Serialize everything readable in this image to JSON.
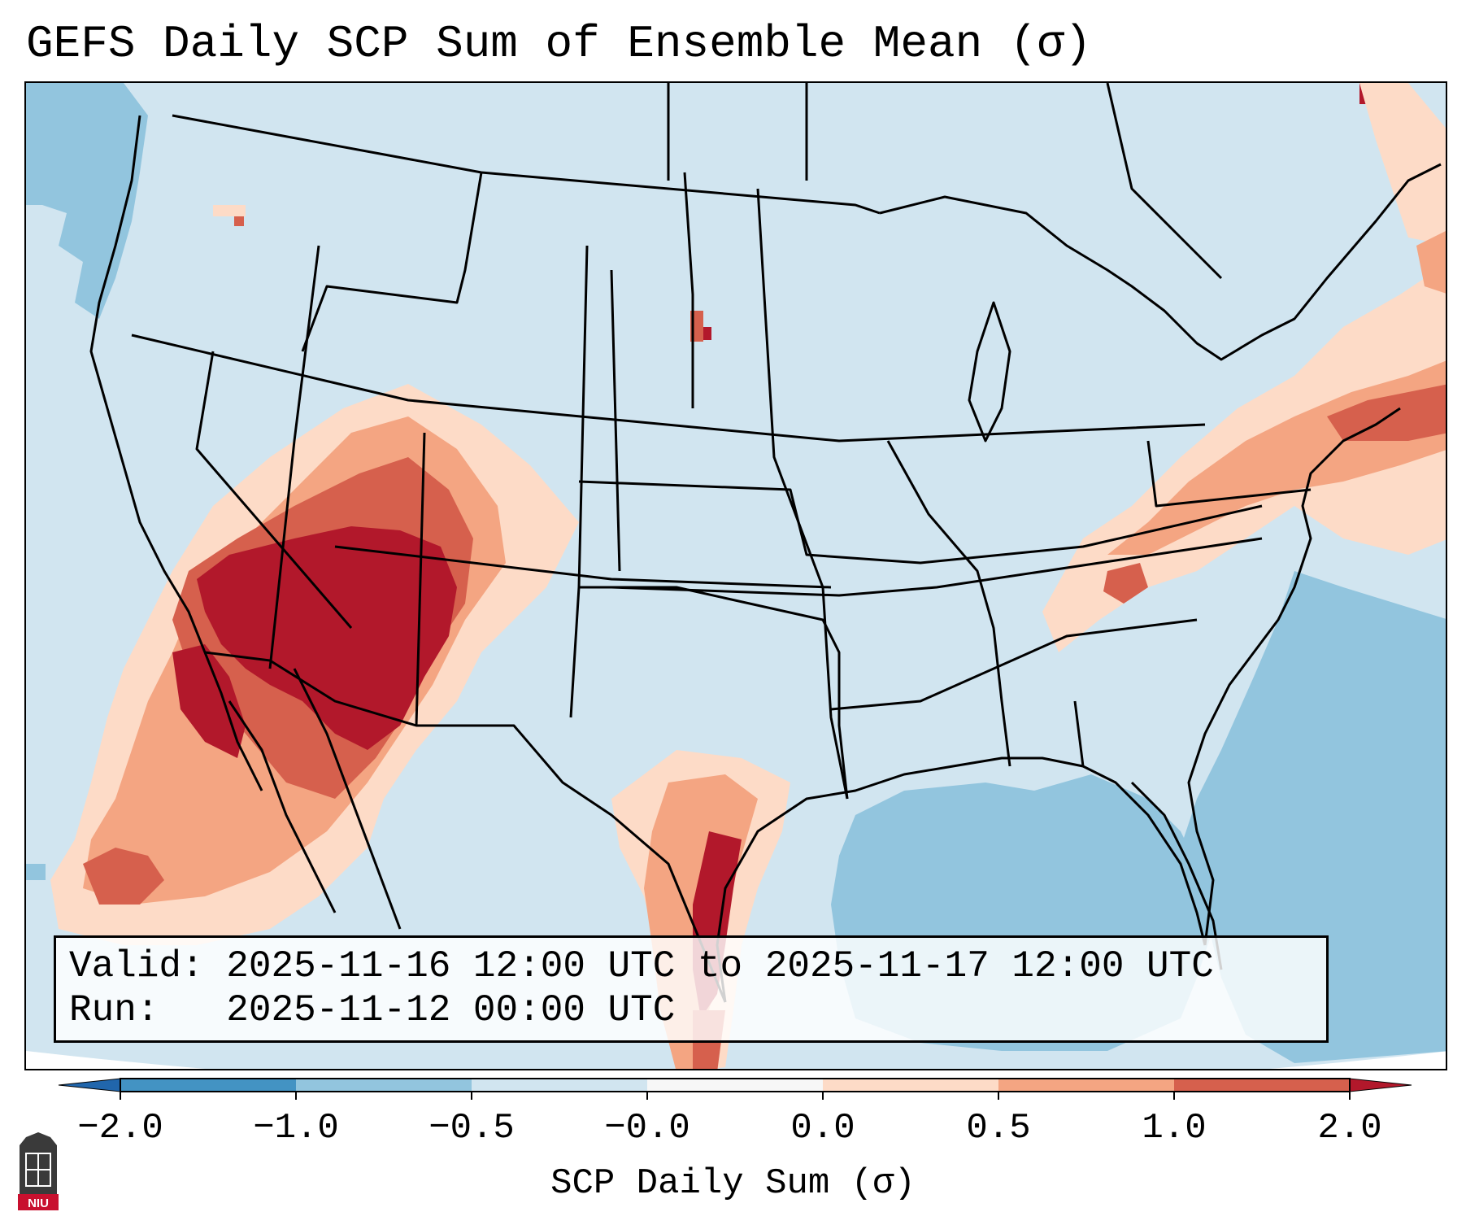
{
  "title": "GEFS Daily SCP Sum of Ensemble Mean (σ)",
  "info": {
    "valid_label": "Valid:",
    "valid_value": "2025-11-16 12:00 UTC to 2025-11-17 12:00 UTC",
    "run_label": "Run:",
    "run_value": "2025-11-12 00:00 UTC"
  },
  "colorbar": {
    "label": "SCP Daily Sum (σ)",
    "ticks": [
      "−2.0",
      "−1.0",
      "−0.5",
      "−0.0",
      "0.0",
      "0.5",
      "1.0",
      "2.0"
    ],
    "colors": [
      "#4393c3",
      "#92c5de",
      "#d1e5f0",
      "#f7f7f7",
      "#fddbc7",
      "#f4a582",
      "#d6604d",
      "#b2182b"
    ],
    "bins": [
      {
        "from": -2.0,
        "to": -1.0,
        "color": "#4393c3"
      },
      {
        "from": -1.0,
        "to": -0.5,
        "color": "#92c5de"
      },
      {
        "from": -0.5,
        "to": -0.0,
        "color": "#d1e5f0"
      },
      {
        "from": 0.0,
        "to": 0.0,
        "color": "#f7f7f7"
      },
      {
        "from": 0.0,
        "to": 0.5,
        "color": "#fddbc7"
      },
      {
        "from": 0.5,
        "to": 1.0,
        "color": "#f4a582"
      },
      {
        "from": 1.0,
        "to": 2.0,
        "color": "#d6604d"
      }
    ],
    "under_color": "#2166ac",
    "over_color": "#b2182b"
  },
  "logo": {
    "text": "NIU",
    "color": "#c8102e"
  },
  "map": {
    "region": "CONUS",
    "fields": [
      {
        "name": "southwest-maximum",
        "level": "2.0",
        "color": "#b2182b"
      },
      {
        "name": "texas-gulf-coast-maximum",
        "level": "2.0",
        "color": "#b2182b"
      },
      {
        "name": "northeast-enhancement",
        "level": "1.0",
        "color": "#d6604d"
      },
      {
        "name": "mid-atlantic-enhancement",
        "level": "0.5",
        "color": "#f4a582"
      },
      {
        "name": "gulf-negative-anomaly",
        "level": "-1.0",
        "color": "#92c5de"
      },
      {
        "name": "atlantic-negative-anomaly",
        "level": "-1.0",
        "color": "#92c5de"
      },
      {
        "name": "pacific-negative-anomaly",
        "level": "-1.0",
        "color": "#92c5de"
      },
      {
        "name": "background",
        "level": "-0.5",
        "color": "#d1e5f0"
      }
    ]
  }
}
